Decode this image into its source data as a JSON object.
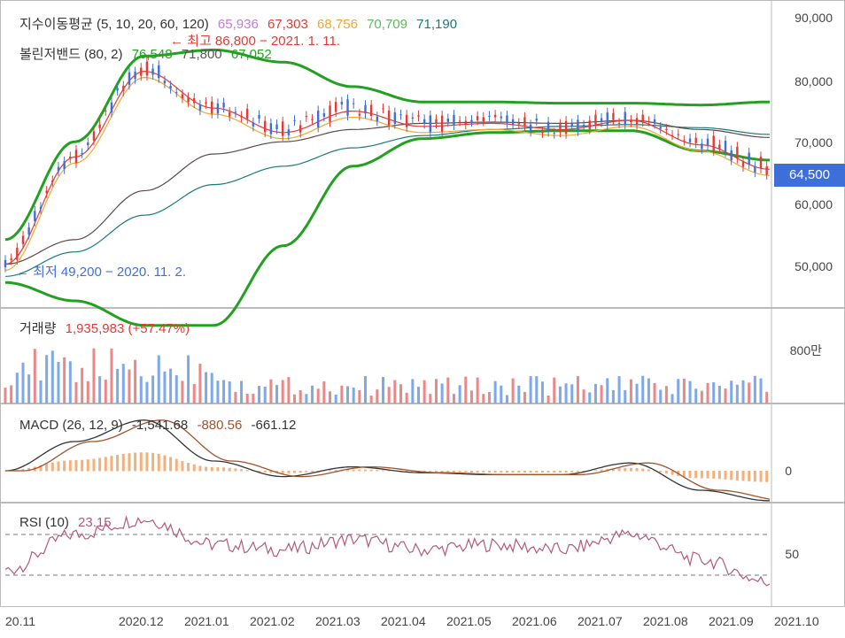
{
  "panels": {
    "price": {
      "ma_label": "지수이동평균 (5, 10, 20, 60, 120)",
      "ma_values": [
        {
          "text": "65,936",
          "color": "#c678dd"
        },
        {
          "text": "67,303",
          "color": "#e53935"
        },
        {
          "text": "68,756",
          "color": "#f0a830"
        },
        {
          "text": "70,709",
          "color": "#5cb85c"
        },
        {
          "text": "71,190",
          "color": "#1a7a7a"
        }
      ],
      "bb_label": "볼린저밴드 (80, 2)",
      "bb_values": [
        {
          "text": "76,548",
          "color": "#22a020"
        },
        {
          "text": "71,800",
          "color": "#555555"
        },
        {
          "text": "67,052",
          "color": "#22a020"
        }
      ],
      "high_annotation": "← 최고 86,800 − 2021. 1. 11.",
      "low_annotation": "← 최저 49,200 − 2020. 11. 2.",
      "current_price": "64,500",
      "y_ticks": [
        "90,000",
        "80,000",
        "70,000",
        "60,000",
        "50,000"
      ]
    },
    "volume": {
      "label": "거래량",
      "value": "1,935,983 (+57.47%)",
      "y_tick": "800만"
    },
    "macd": {
      "label": "MACD (26, 12, 9)",
      "values": [
        {
          "text": "-1,541.68",
          "color": "#333333"
        },
        {
          "text": "-880.56",
          "color": "#a0522d"
        },
        {
          "text": "-661.12",
          "color": "#333333"
        }
      ],
      "y_tick": "0"
    },
    "rsi": {
      "label": "RSI (10)",
      "value": "23.15",
      "y_tick": "50"
    }
  },
  "x_labels": [
    "20.11",
    "2020.12",
    "2021.01",
    "2021.02",
    "2021.03",
    "2021.04",
    "2021.05",
    "2021.06",
    "2021.07",
    "2021.08",
    "2021.09",
    "2021.10"
  ],
  "chart_data": {
    "type": "line",
    "x": [
      "2020.11",
      "2020.12",
      "2021.01",
      "2021.02",
      "2021.03",
      "2021.04",
      "2021.05",
      "2021.06",
      "2021.07",
      "2021.08",
      "2021.09",
      "2021.10"
    ],
    "series": [
      {
        "name": "close",
        "values": [
          50500,
          68000,
          82000,
          76000,
          72000,
          75500,
          73000,
          73500,
          72500,
          74000,
          70000,
          66000
        ]
      },
      {
        "name": "120",
        "values": [
          48000,
          52000,
          58000,
          63000,
          66000,
          69000,
          71000,
          72000,
          72500,
          72800,
          72300,
          71200
        ]
      },
      {
        "name": "60",
        "values": [
          50000,
          54000,
          62000,
          68000,
          70000,
          72000,
          73000,
          73200,
          73000,
          73500,
          72000,
          70700
        ]
      },
      {
        "name": "BB upper",
        "values": [
          54000,
          70000,
          84000,
          85000,
          83000,
          79000,
          76500,
          76500,
          76300,
          76300,
          76000,
          76500
        ]
      },
      {
        "name": "BB lower",
        "values": [
          47000,
          44000,
          40000,
          40000,
          53000,
          66000,
          70500,
          71500,
          71800,
          71800,
          68500,
          67000
        ]
      }
    ],
    "ylim": [
      44000,
      92000
    ],
    "rsi": [
      35,
      70,
      85,
      60,
      55,
      65,
      55,
      60,
      55,
      70,
      45,
      23
    ],
    "macd": [
      0,
      1500,
      2600,
      500,
      -300,
      200,
      -100,
      -200,
      -200,
      400,
      -1000,
      -1541
    ],
    "volume_ylim": [
      0,
      9000000
    ]
  }
}
